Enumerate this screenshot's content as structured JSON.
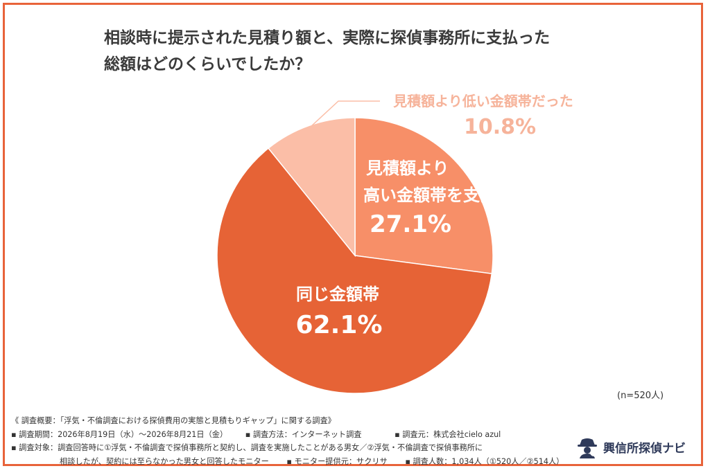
{
  "title": {
    "line1": "相談時に提示された見積り額と、実際に探偵事務所に支払った",
    "line2": "総額はどのくらいでしたか？"
  },
  "chart_data": {
    "type": "pie",
    "slices": [
      {
        "label": "見積額より高い金額帯を支払った",
        "label_lines": [
          "見積額より",
          "高い金額帯を支払った"
        ],
        "value": 27.1,
        "value_text": "27.1%",
        "color": "#f78f68"
      },
      {
        "label": "同じ金額帯",
        "label_lines": [
          "同じ金額帯"
        ],
        "value": 62.1,
        "value_text": "62.1%",
        "color": "#e66336"
      },
      {
        "label": "見積額より低い金額帯だった",
        "label_lines": [
          "見積額より低い金額帯だった"
        ],
        "value": 10.8,
        "value_text": "10.8%",
        "color": "#fbbea7"
      }
    ],
    "start_angle_deg": 0,
    "direction": "clockwise"
  },
  "sample_size": "(n=520人)",
  "footer": {
    "line1": "《 調査概要：「浮気・不倫調査における探偵費用の実態と見積もりギャップ」に関する調査》",
    "line2_a": "▪ 調査期間：2026年8月19日（水）〜2026年8月21日（金）",
    "line2_b": "▪ 調査方法：インターネット調査",
    "line2_c": "▪ 調査元：株式会社cielo azul",
    "line3": "▪ 調査対象：調査回答時に①浮気・不倫調査で探偵事務所と契約し、調査を実施したことがある男女／②浮気・不倫調査で探偵事務所に",
    "line4_a": "相談したが、契約には至らなかった男女と回答したモニター",
    "line4_b": "▪ モニター提供元：サクリサ",
    "line4_c": "▪ 調査人数：1,034人（①520人／②514人）"
  },
  "logo": {
    "text": "興信所探偵ナビ",
    "icon": "detective-icon",
    "icon_color": "#2f3a5a"
  }
}
